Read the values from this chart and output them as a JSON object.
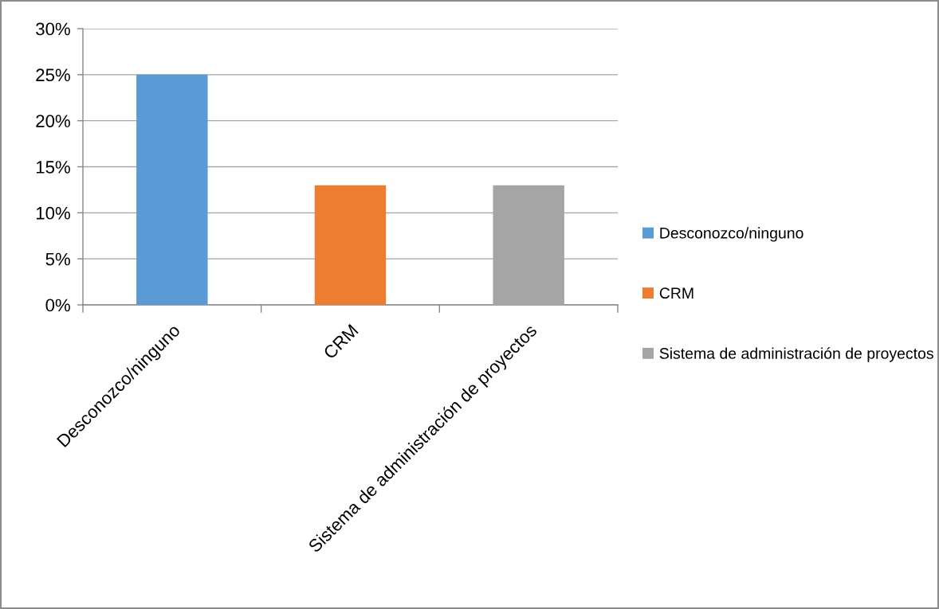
{
  "chart_data": {
    "type": "bar",
    "categories": [
      "Desconozco/ninguno",
      "CRM",
      "Sistema de administración de proyectos"
    ],
    "series": [
      {
        "name": "Desconozco/ninguno",
        "color": "#5b9bd5",
        "values": [
          25,
          null,
          null
        ]
      },
      {
        "name": "CRM",
        "color": "#ed7d31",
        "values": [
          null,
          13,
          null
        ]
      },
      {
        "name": "Sistema de administración de proyectos",
        "color": "#a5a5a5",
        "values": [
          null,
          null,
          13
        ]
      }
    ],
    "stacked": true,
    "ylim": [
      0,
      30
    ],
    "yticks": [
      {
        "value": 0,
        "label": "0%"
      },
      {
        "value": 5,
        "label": "5%"
      },
      {
        "value": 10,
        "label": "10%"
      },
      {
        "value": 15,
        "label": "15%"
      },
      {
        "value": 20,
        "label": "20%"
      },
      {
        "value": 25,
        "label": "25%"
      },
      {
        "value": 30,
        "label": "30%"
      }
    ],
    "grid": "y",
    "legend": "right"
  }
}
